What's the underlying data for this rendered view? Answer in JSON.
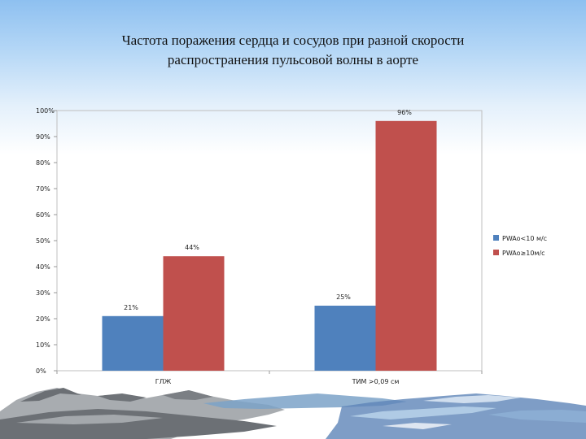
{
  "slide": {
    "title_line1": "Частота поражения сердца и сосудов при разной скорости",
    "title_line2": "распространения пульсовой волны в аорте"
  },
  "chart_data": {
    "type": "bar",
    "title": "Частота поражения сердца и сосудов при разной скорости распространения пульсовой волны в аорте",
    "categories": [
      "ГЛЖ",
      "ТИМ >0,09 см"
    ],
    "series": [
      {
        "name": "PWAo<10 м/с",
        "values": [
          21,
          25
        ],
        "labels": [
          "21%",
          "25%"
        ],
        "color": "#4f81bd"
      },
      {
        "name": "PWAo≥10м/с",
        "values": [
          44,
          96
        ],
        "labels": [
          "44%",
          "96%"
        ],
        "color": "#c0504d"
      }
    ],
    "ylim": [
      0,
      100
    ],
    "yticks": [
      "0%",
      "10%",
      "20%",
      "30%",
      "40%",
      "50%",
      "60%",
      "70%",
      "80%",
      "90%",
      "100%"
    ],
    "xlabel": "",
    "ylabel": "",
    "grid": false,
    "legend": "right"
  }
}
